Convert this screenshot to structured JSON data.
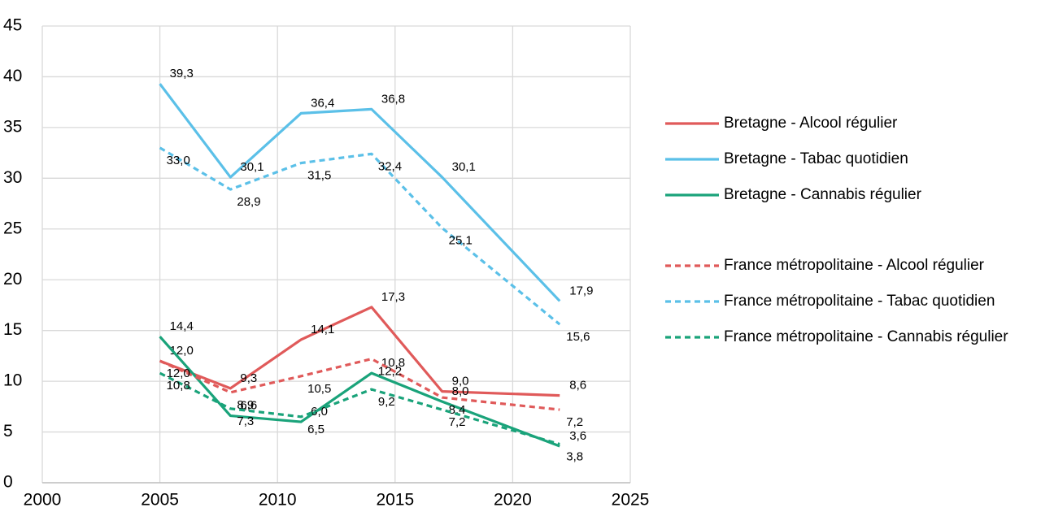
{
  "chart_data": {
    "type": "line",
    "x": [
      2005,
      2008,
      2011,
      2014,
      2017,
      2022
    ],
    "xlim": [
      2000,
      2025
    ],
    "xticks": [
      2000,
      2005,
      2010,
      2015,
      2020,
      2025
    ],
    "ylim": [
      0,
      45
    ],
    "yticks": [
      0,
      5,
      10,
      15,
      20,
      25,
      30,
      35,
      40,
      45
    ],
    "grid": true,
    "legend": "right",
    "series": [
      {
        "name": "Bretagne - Alcool régulier",
        "color": "#e05a5a",
        "style": "solid",
        "values": [
          12.0,
          9.3,
          14.1,
          17.3,
          9.0,
          8.6
        ],
        "value_labels": [
          "12,0",
          "9,3",
          "14,1",
          "17,3",
          "9,0",
          "8,6"
        ]
      },
      {
        "name": "Bretagne - Tabac quotidien",
        "color": "#5bc0e8",
        "style": "solid",
        "values": [
          39.3,
          30.1,
          36.4,
          36.8,
          30.1,
          17.9
        ],
        "value_labels": [
          "39,3",
          "30,1",
          "36,4",
          "36,8",
          "30,1",
          "17,9"
        ]
      },
      {
        "name": "Bretagne - Cannabis régulier",
        "color": "#1aa37a",
        "style": "solid",
        "values": [
          14.4,
          6.6,
          6.0,
          10.8,
          8.0,
          3.6
        ],
        "value_labels": [
          "14,4",
          "6,6",
          "6,0",
          "10,8",
          "8,0",
          "3,6"
        ]
      },
      {
        "name": "France métropolitaine - Alcool régulier",
        "color": "#e05a5a",
        "style": "dashed",
        "values": [
          12.0,
          8.9,
          10.5,
          12.2,
          8.4,
          7.2
        ],
        "value_labels": [
          "12,0",
          "8,9",
          "10,5",
          "12,2",
          "8,4",
          "7,2"
        ]
      },
      {
        "name": "France métropolitaine - Tabac quotidien",
        "color": "#5bc0e8",
        "style": "dashed",
        "values": [
          33.0,
          28.9,
          31.5,
          32.4,
          25.1,
          15.6
        ],
        "value_labels": [
          "33,0",
          "28,9",
          "31,5",
          "32,4",
          "25,1",
          "15,6"
        ]
      },
      {
        "name": "France métropolitaine - Cannabis régulier",
        "color": "#1aa37a",
        "style": "dashed",
        "values": [
          10.8,
          7.3,
          6.5,
          9.2,
          7.2,
          3.8
        ],
        "value_labels": [
          "10,8",
          "7,3",
          "6,5",
          "9,2",
          "7,2",
          "3,8"
        ]
      }
    ]
  }
}
